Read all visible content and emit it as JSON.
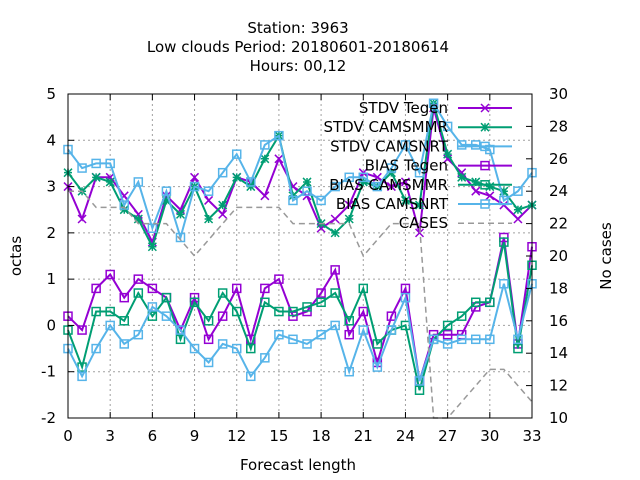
{
  "chart_data": {
    "type": "line",
    "title_lines": [
      "Station:      3963",
      "Low clouds   Period: 20180601-20180614",
      "Hours:  00,12"
    ],
    "xlabel": "Forecast length",
    "ylabel": "octas",
    "y2label": "No cases",
    "xlim": [
      0,
      33
    ],
    "ylim": [
      -2,
      5
    ],
    "y2lim": [
      10,
      30
    ],
    "xticks": [
      0,
      3,
      6,
      9,
      12,
      15,
      18,
      21,
      24,
      27,
      30,
      33
    ],
    "yticks": [
      -2,
      -1,
      0,
      1,
      2,
      3,
      4,
      5
    ],
    "y2ticks": [
      10,
      12,
      14,
      16,
      18,
      20,
      22,
      24,
      26,
      28,
      30
    ],
    "grid": true,
    "legend_position": "top-right",
    "x": [
      0,
      1,
      2,
      3,
      4,
      5,
      6,
      7,
      8,
      9,
      10,
      11,
      12,
      13,
      14,
      15,
      16,
      17,
      18,
      19,
      20,
      21,
      22,
      23,
      24,
      25,
      26,
      27,
      28,
      29,
      30,
      31,
      32,
      33
    ],
    "series": [
      {
        "name": "STDV Tegen",
        "axis": "y1",
        "marker": "x",
        "color": "#9400d3",
        "values": [
          3.0,
          2.3,
          3.2,
          3.2,
          2.8,
          2.4,
          1.8,
          2.8,
          2.5,
          3.2,
          2.7,
          2.4,
          3.2,
          3.1,
          2.8,
          3.6,
          3.0,
          2.8,
          2.1,
          2.3,
          2.6,
          3.3,
          3.2,
          3.0,
          3.1,
          2.0,
          4.7,
          3.6,
          3.3,
          2.9,
          2.8,
          2.6,
          2.3,
          2.6
        ]
      },
      {
        "name": "STDV CAMSMMR",
        "axis": "y1",
        "marker": "star",
        "color": "#009e73",
        "values": [
          3.3,
          2.9,
          3.2,
          3.1,
          2.5,
          2.3,
          1.7,
          2.7,
          2.4,
          3.0,
          2.3,
          2.6,
          3.2,
          3.0,
          3.6,
          4.1,
          2.8,
          3.1,
          2.2,
          2.0,
          2.3,
          3.1,
          3.0,
          3.3,
          2.7,
          2.6,
          4.8,
          3.7,
          3.2,
          3.1,
          3.0,
          2.9,
          2.5,
          2.6
        ]
      },
      {
        "name": "STDV CAMSNRT",
        "axis": "y1",
        "marker": "square",
        "color": "#56b4e9",
        "values": [
          3.8,
          3.4,
          3.5,
          3.5,
          2.6,
          3.1,
          2.1,
          2.9,
          1.9,
          3.0,
          2.9,
          3.3,
          3.7,
          3.1,
          3.9,
          4.1,
          2.7,
          2.9,
          2.7,
          3.0,
          3.2,
          3.2,
          3.0,
          3.4,
          3.9,
          3.3,
          4.8,
          4.3,
          3.9,
          3.9,
          3.8,
          2.7,
          2.9,
          3.3
        ]
      },
      {
        "name": "BIAS Tegen",
        "axis": "y1",
        "marker": "square",
        "color": "#9400d3",
        "values": [
          0.2,
          -0.1,
          0.8,
          1.1,
          0.6,
          1.0,
          0.8,
          0.6,
          -0.1,
          0.6,
          -0.3,
          0.2,
          0.8,
          -0.3,
          0.8,
          1.0,
          0.2,
          0.3,
          0.7,
          1.2,
          -0.2,
          0.3,
          -0.8,
          0.2,
          0.8,
          -1.2,
          -0.2,
          -0.2,
          -0.2,
          0.4,
          0.5,
          1.9,
          -0.4,
          1.7
        ]
      },
      {
        "name": "BIAS CAMSMMR",
        "axis": "y1",
        "marker": "square",
        "color": "#009e73",
        "values": [
          -0.1,
          -0.9,
          0.3,
          0.3,
          0.1,
          0.7,
          0.2,
          0.6,
          -0.3,
          0.5,
          0.1,
          0.7,
          0.3,
          -0.5,
          0.5,
          0.3,
          0.3,
          0.4,
          0.5,
          0.7,
          0.1,
          0.8,
          -0.4,
          -0.1,
          0.0,
          -1.4,
          -0.3,
          0.0,
          0.2,
          0.5,
          0.5,
          1.8,
          -0.5,
          1.3
        ]
      },
      {
        "name": "BIAS CAMSNRT",
        "axis": "y1",
        "marker": "square",
        "color": "#56b4e9",
        "values": [
          -0.5,
          -1.1,
          -0.5,
          0.0,
          -0.4,
          -0.2,
          0.4,
          0.2,
          -0.1,
          -0.5,
          -0.8,
          -0.4,
          -0.5,
          -1.1,
          -0.7,
          -0.2,
          -0.3,
          -0.4,
          -0.2,
          0.0,
          -1.0,
          -0.1,
          -0.9,
          -0.1,
          0.6,
          -1.2,
          -0.3,
          -0.4,
          -0.3,
          -0.3,
          -0.3,
          0.9,
          -0.3,
          0.9
        ]
      },
      {
        "name": "CASES",
        "axis": "y2",
        "marker": "none",
        "color": "#999999",
        "dashed": true,
        "values": [
          24,
          24,
          23,
          23,
          23,
          22,
          22,
          22,
          21,
          20,
          21,
          22,
          23,
          23,
          23,
          23,
          22,
          22,
          22,
          22,
          22,
          20,
          21,
          22,
          22,
          22,
          10,
          10,
          11,
          12,
          13,
          13,
          12,
          11
        ]
      }
    ]
  }
}
